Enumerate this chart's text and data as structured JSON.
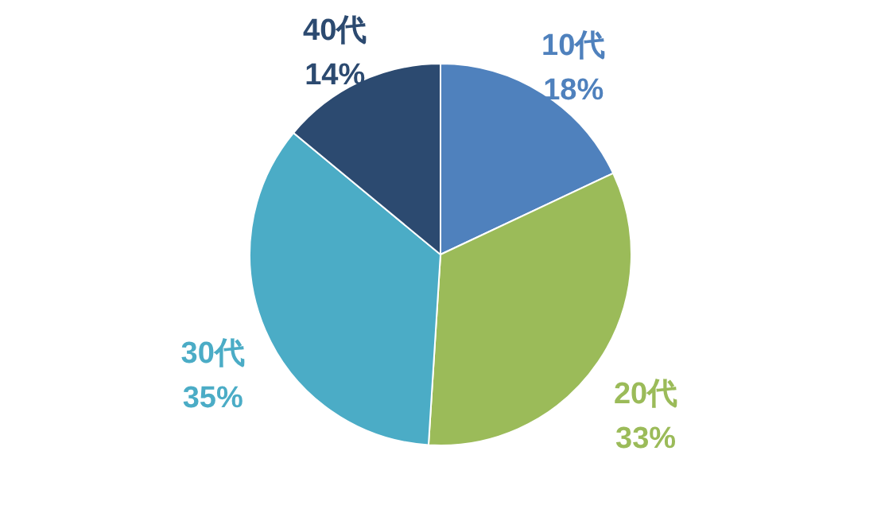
{
  "chart_data": {
    "type": "pie",
    "categories": [
      "10代",
      "20代",
      "30代",
      "40代"
    ],
    "values": [
      18,
      33,
      35,
      14
    ],
    "colors": [
      "#4f81bd",
      "#9bbb59",
      "#4bacc6",
      "#2c4a70"
    ],
    "value_labels": [
      "18%",
      "33%",
      "35%",
      "14%"
    ]
  }
}
